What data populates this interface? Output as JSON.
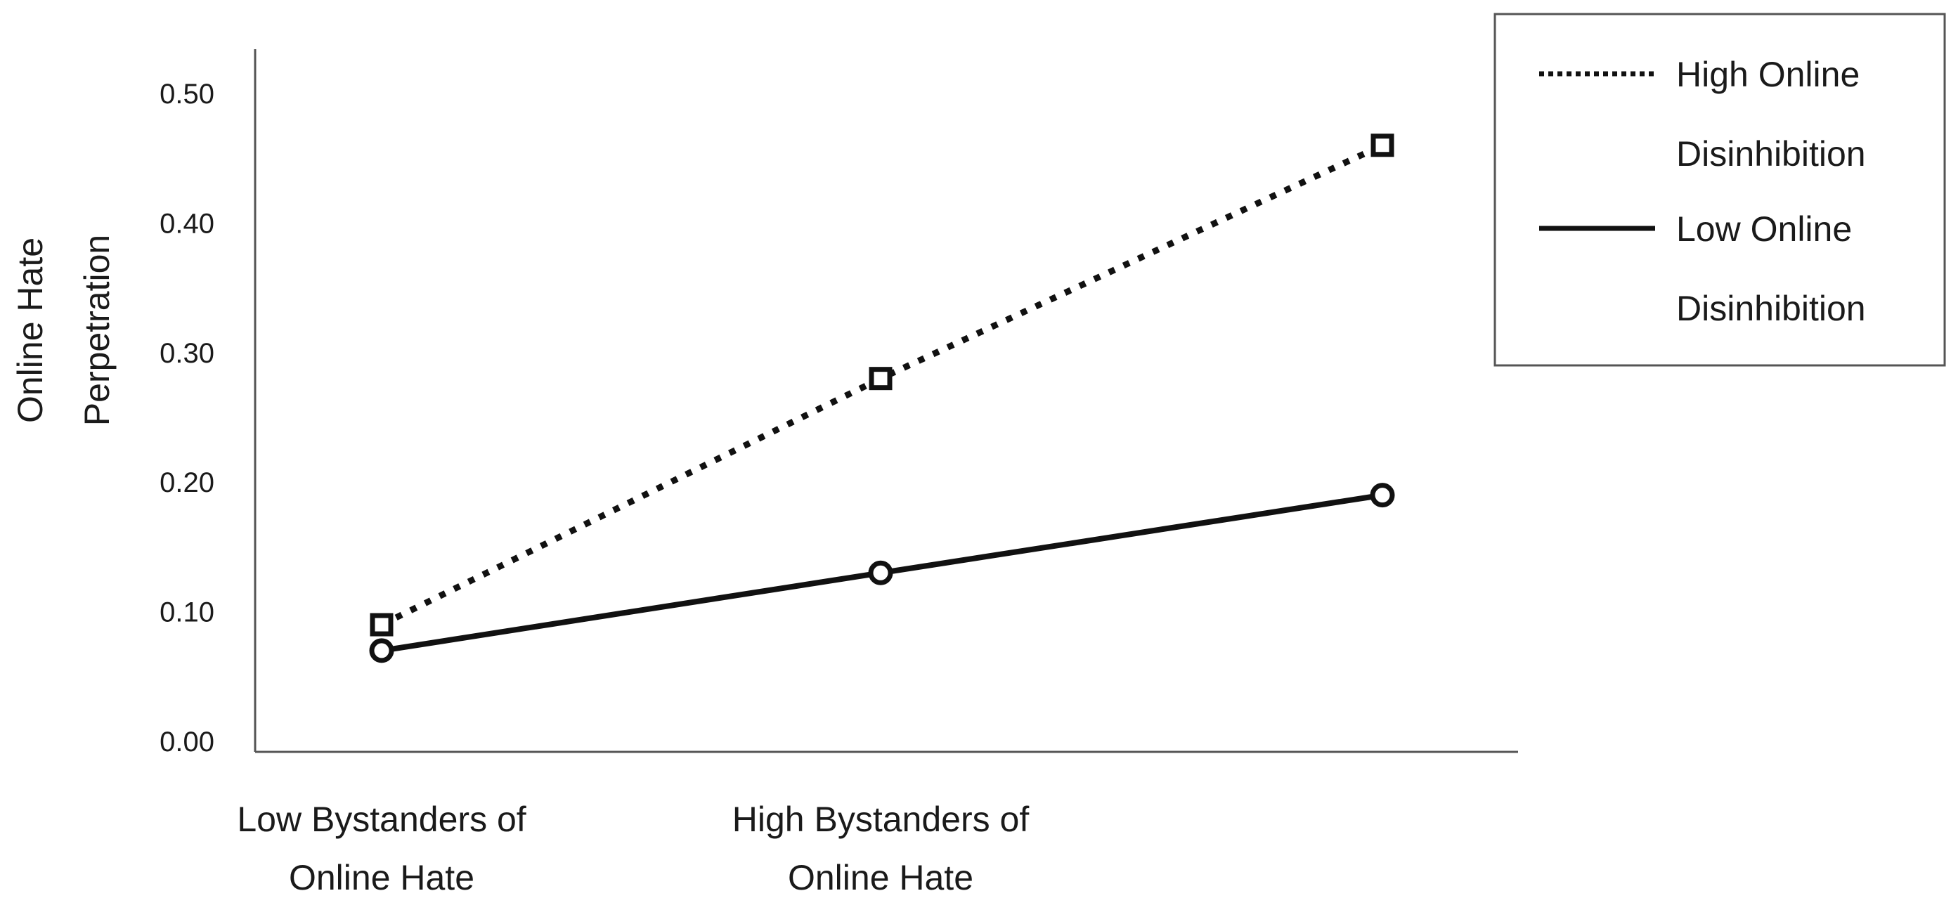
{
  "chart_data": {
    "type": "line",
    "title": "",
    "xlabel": "",
    "ylabel": [
      "Online Hate",
      "Perpetration"
    ],
    "categories": [
      [
        "Low Bystanders of",
        "Online Hate"
      ],
      [
        "High Bystanders of",
        "Online Hate"
      ],
      ""
    ],
    "yticks": [
      "0.00",
      "0.10",
      "0.20",
      "0.30",
      "0.40",
      "0.50"
    ],
    "ylim": [
      0,
      0.5
    ],
    "grid": false,
    "legend_position": "top-right",
    "series": [
      {
        "name": [
          "High Online",
          "Disinhibition"
        ],
        "line_style": "dotted",
        "marker": "square",
        "values": [
          0.09,
          0.28,
          0.46
        ]
      },
      {
        "name": [
          "Low Online",
          "Disinhibition"
        ],
        "line_style": "solid",
        "marker": "circle",
        "values": [
          0.07,
          0.13,
          0.19
        ]
      }
    ],
    "colors": {
      "line": "#111111",
      "axis": "#555555",
      "legend_border": "#555555"
    }
  }
}
